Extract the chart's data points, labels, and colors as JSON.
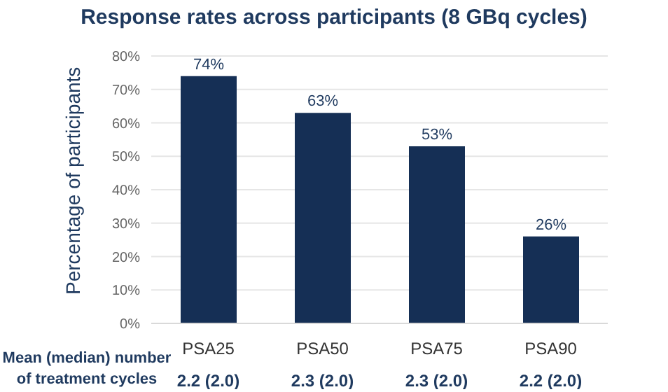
{
  "chart_data": {
    "type": "bar",
    "title": "Response rates across participants (8 GBq cycles)",
    "ylabel": "Percentage of participants",
    "categories": [
      "PSA25",
      "PSA50",
      "PSA75",
      "PSA90"
    ],
    "values": [
      74,
      63,
      53,
      26
    ],
    "color": "#152f55",
    "value_labels": [
      "74%",
      "63%",
      "53%",
      "26%"
    ],
    "ylim": [
      0,
      80
    ],
    "yticks": [
      {
        "value": 0,
        "label": "0%"
      },
      {
        "value": 10,
        "label": "10%"
      },
      {
        "value": 20,
        "label": "20%"
      },
      {
        "value": 30,
        "label": "30%"
      },
      {
        "value": 40,
        "label": "40%"
      },
      {
        "value": 50,
        "label": "50%"
      },
      {
        "value": 60,
        "label": "60%"
      },
      {
        "value": 70,
        "label": "70%"
      },
      {
        "value": 80,
        "label": "80%"
      }
    ],
    "grid": "y",
    "legend": false,
    "annotations": [
      "Mean (median) number of treatment cycles",
      "2.2 (2.0)",
      "2.3 (2.0)",
      "2.3 (2.0)",
      "2.2 (2.0)"
    ]
  }
}
